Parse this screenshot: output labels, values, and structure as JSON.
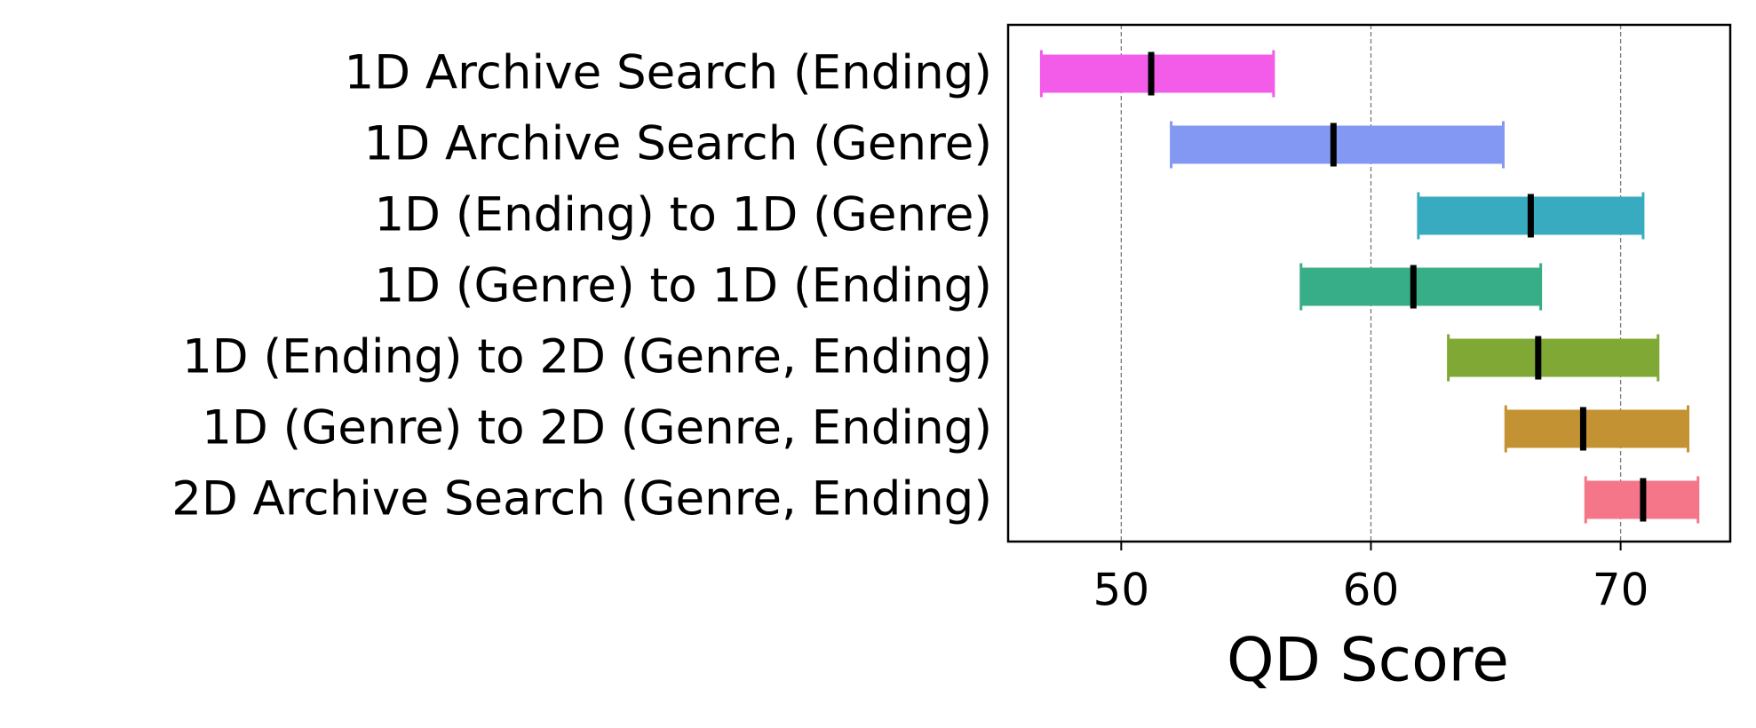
{
  "chart_data": {
    "type": "range",
    "x_label": "QD Score",
    "categories": [
      "1D Archive Search (Ending)",
      "1D Archive Search (Genre)",
      "1D (Ending) to 1D (Genre)",
      "1D (Genre) to 1D (Ending)",
      "1D (Ending) to 2D (Genre, Ending)",
      "1D (Genre) to 2D (Genre, Ending)",
      "2D Archive Search (Genre, Ending)"
    ],
    "values": [
      51.2,
      58.5,
      66.4,
      61.7,
      66.7,
      68.5,
      70.9
    ],
    "lower": [
      46.8,
      52.0,
      61.9,
      57.2,
      63.1,
      65.4,
      68.6
    ],
    "upper": [
      56.1,
      65.3,
      70.9,
      66.8,
      71.5,
      72.7,
      73.1
    ],
    "colors": [
      "#f25ce9",
      "#8398f2",
      "#39abc0",
      "#37ae87",
      "#80a834",
      "#c39232",
      "#f57689"
    ],
    "xlim": [
      45.47,
      74.39
    ],
    "xticks": [
      50,
      60,
      70
    ],
    "grid": true
  }
}
